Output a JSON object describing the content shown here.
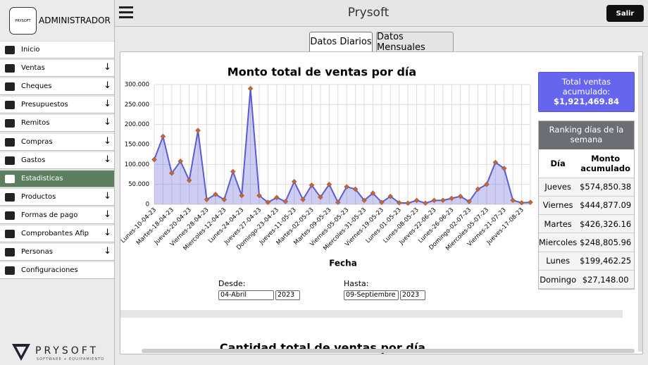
{
  "sidebar": {
    "brand": "ADMINISTRADOR",
    "logo": "PRYSOFT",
    "logo_tagline": "SOFTWARE + EQUIPAMIENTO",
    "menu": [
      {
        "label": "Inicio"
      },
      {
        "label": "Ventas",
        "expandable": true
      },
      {
        "label": "Cheques",
        "expandable": true
      },
      {
        "label": "Presupuestos",
        "expandable": true
      },
      {
        "label": "Remitos",
        "expandable": true
      },
      {
        "label": "Compras",
        "expandable": true
      },
      {
        "label": "Gastos",
        "expandable": true
      },
      {
        "label": "Estadisticas",
        "active": true
      },
      {
        "label": "Productos",
        "expandable": true
      },
      {
        "label": "Formas de pago",
        "expandable": true
      },
      {
        "label": "Comprobantes Afip",
        "expandable": true
      },
      {
        "label": "Personas",
        "expandable": true
      },
      {
        "label": "Configuraciones"
      }
    ]
  },
  "header": {
    "title": "Prysoft",
    "logout": "Salir"
  },
  "tabs": [
    "Datos Diarios",
    "Datos Mensuales"
  ],
  "chart_data": {
    "type": "line",
    "title": "Monto total de ventas por día",
    "x_label": "Fecha",
    "color": "#5b5bd6",
    "fill": true,
    "marker_color": "#c0663c",
    "grid": true,
    "categories": [
      "Lunes-10-04-23",
      null,
      "Martes-18-04-23",
      null,
      "Jueves-20-04-23",
      null,
      "Viernes-28-04-23",
      null,
      "Miercoles-12-04-23",
      null,
      "Lunes-24-04-23",
      null,
      "Jueves-27-04-23",
      null,
      "Domingo-23-04-23",
      null,
      "Jueves-11-05-23",
      null,
      "Martes-02-05-23",
      null,
      "Martes-09-05-23",
      null,
      "Viernes-05-05-23",
      null,
      "Miercoles-31-05-23",
      null,
      "Viernes-19-05-23",
      null,
      "Lunes-01-05-23",
      null,
      "Lunes-08-05-23",
      null,
      "Jueves-22-06-23",
      null,
      "Lunes-26-06-23",
      null,
      "Domingo-02-07-23",
      null,
      "Miercoles-05-07-23",
      null,
      "Viernes-21-07-23",
      null,
      "Jueves-17-08-23",
      null
    ],
    "values": [
      112000,
      170000,
      78000,
      108000,
      60000,
      185000,
      12000,
      25000,
      12000,
      82000,
      22000,
      290000,
      22000,
      5000,
      17000,
      7000,
      57000,
      12000,
      48000,
      18000,
      50000,
      5000,
      44000,
      38000,
      10000,
      28000,
      5000,
      20000,
      4000,
      3000,
      10000,
      3000,
      10000,
      10000,
      15000,
      20000,
      7000,
      38000,
      50000,
      105000,
      90000,
      10000,
      4000,
      5000
    ],
    "ylim": [
      0,
      300000
    ],
    "yticks": [
      0,
      {
        "value": 50000,
        "label": "50.000"
      },
      {
        "value": 100000,
        "label": "100.000"
      },
      {
        "value": 150000,
        "label": "150.000"
      },
      {
        "value": 200000,
        "label": "200.000"
      },
      {
        "value": 250000,
        "label": "250.000"
      },
      {
        "value": 300000,
        "label": "300.000"
      }
    ]
  },
  "filters": {
    "from_label": "Desde:",
    "from_month": "04-Abril",
    "from_year": "2023",
    "to_label": "Hasta:",
    "to_month": "09-Septiembre",
    "to_year": "2023"
  },
  "summary": {
    "total_label": "Total ventas acumulado:",
    "total_value": "$1,921,469.84"
  },
  "ranking": {
    "title": "Ranking días de la semana",
    "columns": [
      "Día",
      "Monto acumulado"
    ],
    "rows": [
      [
        "Jueves",
        "$574,850.38"
      ],
      [
        "Viernes",
        "$444,877.09"
      ],
      [
        "Martes",
        "$426,326.16"
      ],
      [
        "Miercoles",
        "$248,805.96"
      ],
      [
        "Lunes",
        "$199,462.25"
      ],
      [
        "Domingo",
        "$27,148.00"
      ]
    ]
  },
  "next_chart_title": "Cantidad total de ventas por día"
}
